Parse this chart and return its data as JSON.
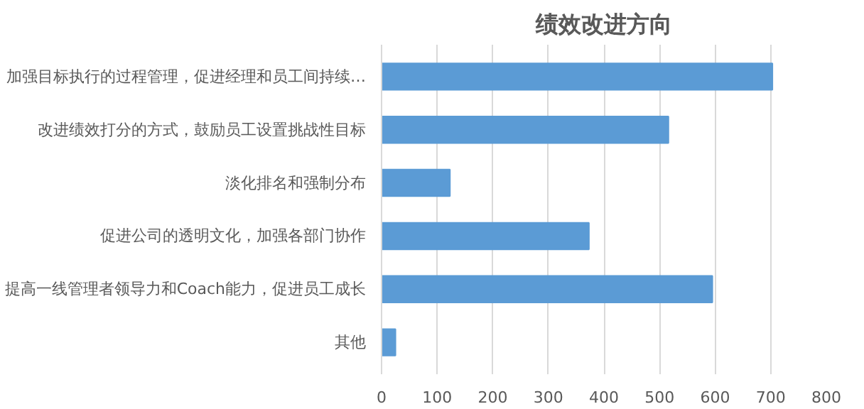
{
  "chart_data": {
    "type": "bar",
    "orientation": "horizontal",
    "title": "绩效改进方向",
    "categories": [
      "加强目标执行的过程管理，促进经理和员工间持续…",
      "改进绩效打分的方式，鼓励员工设置挑战性目标",
      "淡化排名和强制分布",
      "促进公司的透明文化，加强各部门协作",
      "提高一线管理者领导力和Coach能力，促进员工成长",
      "其他"
    ],
    "values": [
      703,
      516,
      123,
      373,
      595,
      25
    ],
    "color": "#5b9bd5",
    "xlim": [
      0,
      800
    ],
    "xticks": [
      0,
      100,
      200,
      300,
      400,
      500,
      600,
      700,
      800
    ],
    "grid": "x"
  }
}
